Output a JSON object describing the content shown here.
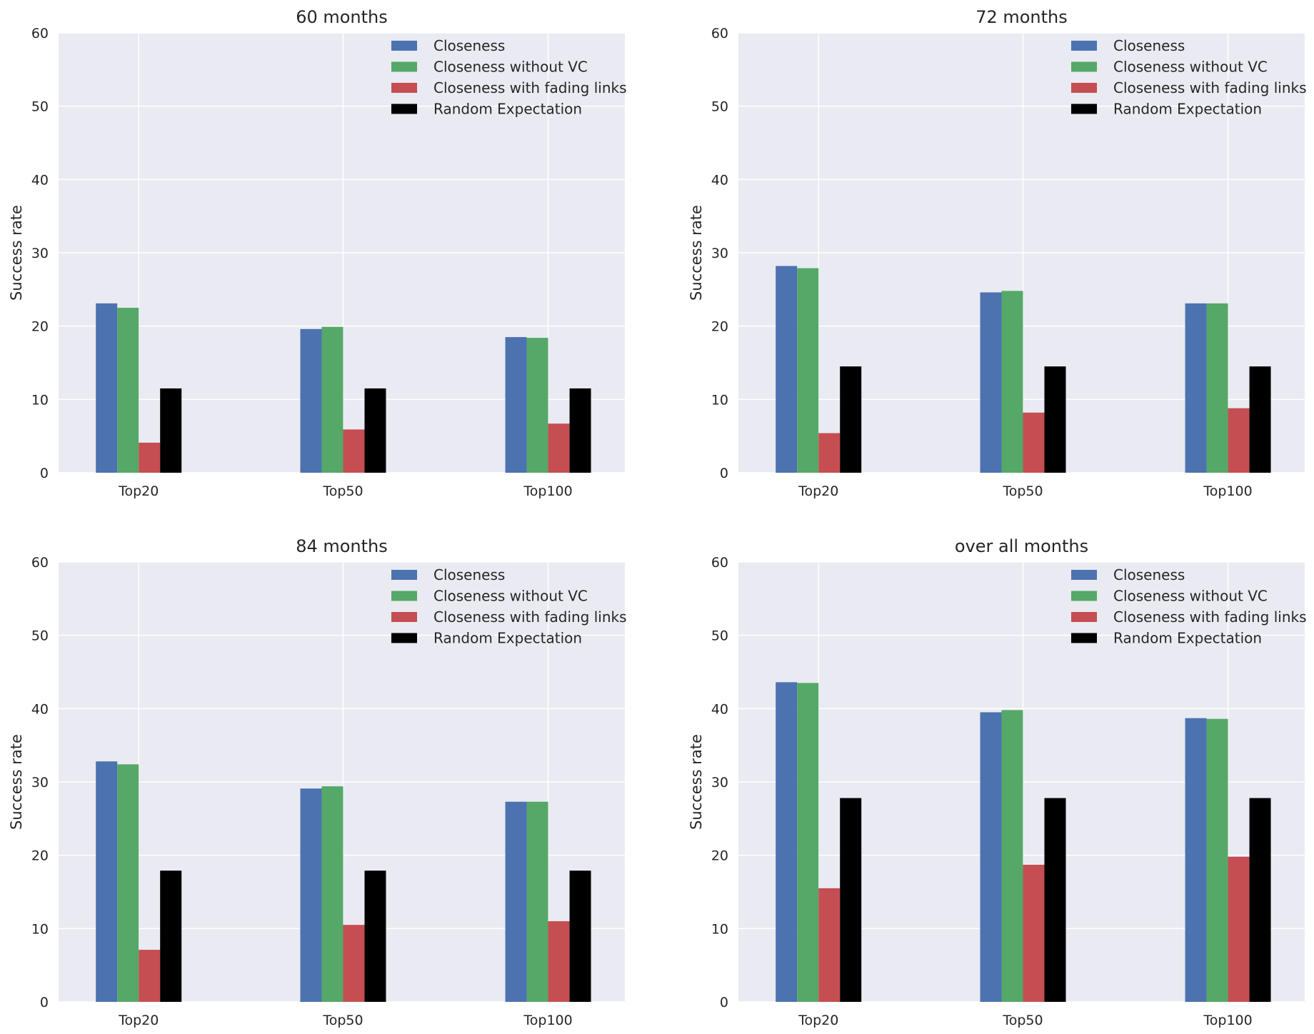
{
  "legend": [
    {
      "name": "Closeness",
      "color": "#4c72b0"
    },
    {
      "name": "Closeness without VC",
      "color": "#55a868"
    },
    {
      "name": "Closeness with fading links",
      "color": "#c44e52"
    },
    {
      "name": "Random Expectation",
      "color": "#000000"
    }
  ],
  "style": {
    "plot_background": "#eaeaf2",
    "grid_color": "#ffffff"
  },
  "chart_data": [
    {
      "type": "bar",
      "title": "60 months",
      "ylabel": "Success rate",
      "xlabel": "",
      "categories": [
        "Top20",
        "Top50",
        "Top100"
      ],
      "ylim": [
        0,
        60
      ],
      "yticks": [
        0,
        10,
        20,
        30,
        40,
        50,
        60
      ],
      "legend_position": "top-right",
      "grid": true,
      "series": [
        {
          "name": "Closeness",
          "values": [
            23.1,
            19.6,
            18.5
          ]
        },
        {
          "name": "Closeness without VC",
          "values": [
            22.5,
            19.9,
            18.4
          ]
        },
        {
          "name": "Closeness with fading links",
          "values": [
            4.1,
            5.9,
            6.7
          ]
        },
        {
          "name": "Random Expectation",
          "values": [
            11.5,
            11.5,
            11.5
          ]
        }
      ]
    },
    {
      "type": "bar",
      "title": "72 months",
      "ylabel": "Success rate",
      "xlabel": "",
      "categories": [
        "Top20",
        "Top50",
        "Top100"
      ],
      "ylim": [
        0,
        60
      ],
      "yticks": [
        0,
        10,
        20,
        30,
        40,
        50,
        60
      ],
      "legend_position": "top-right",
      "grid": true,
      "series": [
        {
          "name": "Closeness",
          "values": [
            28.2,
            24.6,
            23.1
          ]
        },
        {
          "name": "Closeness without VC",
          "values": [
            27.9,
            24.8,
            23.1
          ]
        },
        {
          "name": "Closeness with fading links",
          "values": [
            5.4,
            8.2,
            8.8
          ]
        },
        {
          "name": "Random Expectation",
          "values": [
            14.5,
            14.5,
            14.5
          ]
        }
      ]
    },
    {
      "type": "bar",
      "title": "84 months",
      "ylabel": "Success rate",
      "xlabel": "",
      "categories": [
        "Top20",
        "Top50",
        "Top100"
      ],
      "ylim": [
        0,
        60
      ],
      "yticks": [
        0,
        10,
        20,
        30,
        40,
        50,
        60
      ],
      "legend_position": "top-right",
      "grid": true,
      "series": [
        {
          "name": "Closeness",
          "values": [
            32.8,
            29.1,
            27.3
          ]
        },
        {
          "name": "Closeness without VC",
          "values": [
            32.4,
            29.4,
            27.3
          ]
        },
        {
          "name": "Closeness with fading links",
          "values": [
            7.1,
            10.5,
            11.0
          ]
        },
        {
          "name": "Random Expectation",
          "values": [
            17.9,
            17.9,
            17.9
          ]
        }
      ]
    },
    {
      "type": "bar",
      "title": "over all months",
      "ylabel": "Success rate",
      "xlabel": "",
      "categories": [
        "Top20",
        "Top50",
        "Top100"
      ],
      "ylim": [
        0,
        60
      ],
      "yticks": [
        0,
        10,
        20,
        30,
        40,
        50,
        60
      ],
      "legend_position": "top-right",
      "grid": true,
      "series": [
        {
          "name": "Closeness",
          "values": [
            43.6,
            39.5,
            38.7
          ]
        },
        {
          "name": "Closeness without VC",
          "values": [
            43.5,
            39.8,
            38.6
          ]
        },
        {
          "name": "Closeness with fading links",
          "values": [
            15.5,
            18.7,
            19.8
          ]
        },
        {
          "name": "Random Expectation",
          "values": [
            27.8,
            27.8,
            27.8
          ]
        }
      ]
    }
  ]
}
